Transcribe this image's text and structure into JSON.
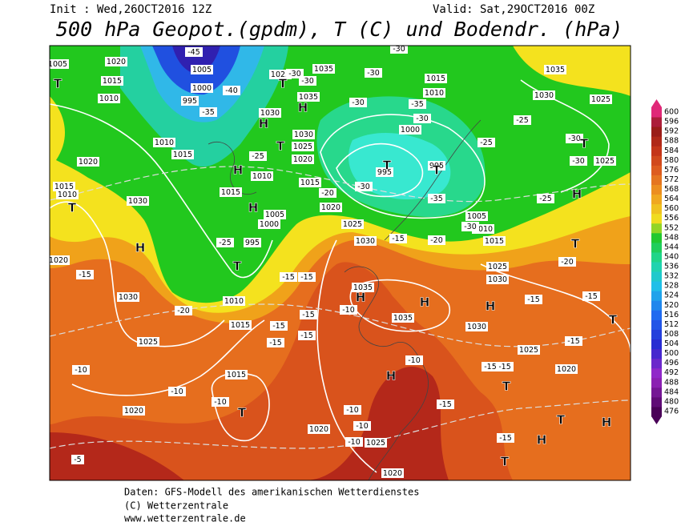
{
  "header": {
    "init": "Init : Wed,26OCT2016 12Z",
    "valid": "Valid: Sat,29OCT2016 00Z",
    "title": "500 hPa Geopot.(gpdm), T (C) und Bodendr. (hPa)"
  },
  "colorbar": {
    "levels": [
      476,
      480,
      484,
      488,
      492,
      496,
      500,
      504,
      508,
      512,
      516,
      520,
      524,
      528,
      532,
      536,
      540,
      544,
      548,
      552,
      556,
      560,
      564,
      568,
      572,
      576,
      580,
      584,
      588,
      592,
      596,
      600
    ]
  },
  "map": {
    "isobar_labels": [
      "1020",
      "1005",
      "1015",
      "1010",
      "1005",
      "1000",
      "995",
      "1010",
      "1015",
      "1020",
      "1015",
      "1010",
      "1030",
      "1020",
      "1030",
      "1025",
      "1020",
      "1015",
      "1010",
      "1015",
      "995",
      "1000",
      "1005",
      "1015",
      "1010",
      "1030",
      "1025",
      "1035",
      "1035",
      "1030",
      "1025",
      "1020",
      "1015",
      "1020",
      "1025",
      "1030",
      "1035",
      "1035",
      "1030",
      "1025",
      "1020",
      "1030",
      "1025",
      "1015",
      "1010",
      "1005",
      "1000",
      "995",
      "995",
      "1015",
      "1010",
      "1035",
      "1030",
      "1025",
      "1025",
      "1020",
      "1025",
      "1020"
    ],
    "temperature_labels": [
      "-45",
      "-40",
      "-35",
      "-30",
      "-30",
      "-30",
      "-30",
      "-30",
      "-35",
      "-30",
      "-25",
      "-25",
      "-30",
      "-30",
      "-25",
      "-20",
      "-15",
      "-15",
      "-15",
      "-15",
      "-15",
      "-15",
      "-15",
      "-10",
      "-10",
      "-10",
      "-10",
      "-10",
      "-15",
      "-15",
      "-15",
      "-15",
      "-15",
      "-15",
      "-20",
      "-15",
      "-25",
      "-25",
      "-20",
      "-30",
      "-35",
      "-30",
      "-20",
      "-15",
      "-10",
      "-10",
      "-10",
      "-5"
    ],
    "centers": [
      "T",
      "H",
      "H",
      "T",
      "T",
      "H",
      "H",
      "T",
      "T",
      "T",
      "H",
      "T",
      "T",
      "H",
      "T",
      "H",
      "H",
      "H",
      "H",
      "T",
      "T",
      "T",
      "H",
      "H",
      "T",
      "T"
    ]
  },
  "footer": [
    "Daten: GFS-Modell des amerikanischen Wetterdienstes",
    "(C) Wetterzentrale",
    "www.wetterzentrale.de"
  ]
}
